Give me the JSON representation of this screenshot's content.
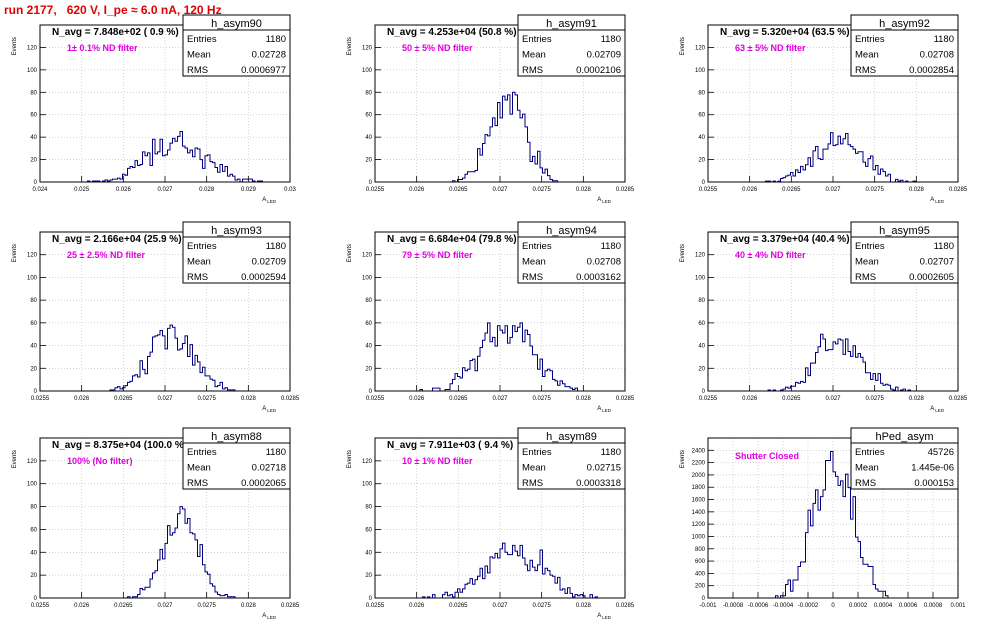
{
  "page_title": "run 2177,   620 V, I_pe ≈ 6.0 nA, 120 Hz",
  "colors": {
    "title": "#e00000",
    "annotation": "#e000e0",
    "histogram": "#000080",
    "grid": "#bbbbbb"
  },
  "chart_data": [
    {
      "type": "histogram",
      "name": "h_asym90",
      "header": "N_avg = 7.848e+02 ( 0.9 %)",
      "filter_label": "1± 0.1% ND filter",
      "stats": {
        "Entries": "1180",
        "Mean": "0.02728",
        "RMS": "0.0006977"
      },
      "ylabel": "Events",
      "xlabel": "A_LED",
      "xlim": [
        0.024,
        0.03
      ],
      "ylim": [
        0,
        140
      ],
      "grid": true,
      "xticks": [
        0.024,
        0.025,
        0.026,
        0.027,
        0.028,
        0.029,
        0.03
      ],
      "yticks": [
        0,
        20,
        40,
        60,
        80,
        100,
        120
      ],
      "mean": 0.02728,
      "rms": 0.0006977,
      "entries": 1180,
      "bins": 100,
      "peak": 45
    },
    {
      "type": "histogram",
      "name": "h_asym91",
      "header": "N_avg = 4.253e+04 (50.8 %)",
      "filter_label": "50 ± 5% ND filter",
      "stats": {
        "Entries": "1180",
        "Mean": "0.02709",
        "RMS": "0.0002106"
      },
      "ylabel": "Events",
      "xlabel": "A_LED",
      "xlim": [
        0.0255,
        0.0285
      ],
      "ylim": [
        0,
        140
      ],
      "grid": true,
      "xticks": [
        0.0255,
        0.026,
        0.0265,
        0.027,
        0.0275,
        0.028,
        0.0285
      ],
      "yticks": [
        0,
        20,
        40,
        60,
        80,
        100,
        120
      ],
      "mean": 0.02709,
      "rms": 0.0002106,
      "entries": 1180,
      "bins": 100,
      "peak": 80
    },
    {
      "type": "histogram",
      "name": "h_asym92",
      "header": "N_avg = 5.320e+04 (63.5 %)",
      "filter_label": "63 ± 5% ND filter",
      "stats": {
        "Entries": "1180",
        "Mean": "0.02708",
        "RMS": "0.0002854"
      },
      "ylabel": "Events",
      "xlabel": "A_LED",
      "xlim": [
        0.0255,
        0.0285
      ],
      "ylim": [
        0,
        140
      ],
      "grid": true,
      "xticks": [
        0.0255,
        0.026,
        0.0265,
        0.027,
        0.0275,
        0.028,
        0.0285
      ],
      "yticks": [
        0,
        20,
        40,
        60,
        80,
        100,
        120
      ],
      "mean": 0.02708,
      "rms": 0.0002854,
      "entries": 1180,
      "bins": 100,
      "peak": 44
    },
    {
      "type": "histogram",
      "name": "h_asym93",
      "header": "N_avg = 2.166e+04 (25.9 %)",
      "filter_label": "25 ± 2.5% ND filter",
      "stats": {
        "Entries": "1180",
        "Mean": "0.02709",
        "RMS": "0.0002594"
      },
      "ylabel": "Events",
      "xlabel": "A_LED",
      "xlim": [
        0.0255,
        0.0285
      ],
      "ylim": [
        0,
        140
      ],
      "grid": true,
      "xticks": [
        0.0255,
        0.026,
        0.0265,
        0.027,
        0.0275,
        0.028,
        0.0285
      ],
      "yticks": [
        0,
        20,
        40,
        60,
        80,
        100,
        120
      ],
      "mean": 0.02709,
      "rms": 0.0002594,
      "entries": 1180,
      "bins": 100,
      "peak": 58
    },
    {
      "type": "histogram",
      "name": "h_asym94",
      "header": "N_avg = 6.684e+04 (79.8 %)",
      "filter_label": "79 ± 5% ND filter",
      "stats": {
        "Entries": "1180",
        "Mean": "0.02708",
        "RMS": "0.0003162"
      },
      "ylabel": "Events",
      "xlabel": "A_LED",
      "xlim": [
        0.0255,
        0.0285
      ],
      "ylim": [
        0,
        140
      ],
      "grid": true,
      "xticks": [
        0.0255,
        0.026,
        0.0265,
        0.027,
        0.0275,
        0.028,
        0.0285
      ],
      "yticks": [
        0,
        20,
        40,
        60,
        80,
        100,
        120
      ],
      "mean": 0.02708,
      "rms": 0.0003162,
      "entries": 1180,
      "bins": 100,
      "peak": 60
    },
    {
      "type": "histogram",
      "name": "h_asym95",
      "header": "N_avg = 3.379e+04 (40.4 %)",
      "filter_label": "40 ± 4% ND filter",
      "stats": {
        "Entries": "1180",
        "Mean": "0.02707",
        "RMS": "0.0002605"
      },
      "ylabel": "Events",
      "xlabel": "A_LED",
      "xlim": [
        0.0255,
        0.0285
      ],
      "ylim": [
        0,
        140
      ],
      "grid": true,
      "xticks": [
        0.0255,
        0.026,
        0.0265,
        0.027,
        0.0275,
        0.028,
        0.0285
      ],
      "yticks": [
        0,
        20,
        40,
        60,
        80,
        100,
        120
      ],
      "mean": 0.02707,
      "rms": 0.0002605,
      "entries": 1180,
      "bins": 100,
      "peak": 50
    },
    {
      "type": "histogram",
      "name": "h_asym88",
      "header": "N_avg = 8.375e+04 (100.0 %)",
      "filter_label": "100% (No filter)",
      "stats": {
        "Entries": "1180",
        "Mean": "0.02718",
        "RMS": "0.0002065"
      },
      "ylabel": "Events",
      "xlabel": "A_LED",
      "xlim": [
        0.0255,
        0.0285
      ],
      "ylim": [
        0,
        140
      ],
      "grid": true,
      "xticks": [
        0.0255,
        0.026,
        0.0265,
        0.027,
        0.0275,
        0.028,
        0.0285
      ],
      "yticks": [
        0,
        20,
        40,
        60,
        80,
        100,
        120
      ],
      "mean": 0.02718,
      "rms": 0.0002065,
      "entries": 1180,
      "bins": 100,
      "peak": 80
    },
    {
      "type": "histogram",
      "name": "h_asym89",
      "header": "N_avg = 7.911e+03 ( 9.4 %)",
      "filter_label": "10 ± 1% ND filter",
      "stats": {
        "Entries": "1180",
        "Mean": "0.02715",
        "RMS": "0.0003318"
      },
      "ylabel": "Events",
      "xlabel": "A_LED",
      "xlim": [
        0.0255,
        0.0285
      ],
      "ylim": [
        0,
        140
      ],
      "grid": true,
      "xticks": [
        0.0255,
        0.026,
        0.0265,
        0.027,
        0.0275,
        0.028,
        0.0285
      ],
      "yticks": [
        0,
        20,
        40,
        60,
        80,
        100,
        120
      ],
      "mean": 0.02715,
      "rms": 0.0003318,
      "entries": 1180,
      "bins": 100,
      "peak": 48
    },
    {
      "type": "histogram",
      "name": "hPed_asym",
      "header": "",
      "filter_label": "Shutter Closed",
      "stats": {
        "Entries": "45726",
        "Mean": "1.445e-06",
        "RMS": "0.000153"
      },
      "ylabel": "Events",
      "xlabel": "",
      "xlim": [
        -0.001,
        0.001
      ],
      "ylim": [
        0,
        2600
      ],
      "grid": true,
      "xticks": [
        -0.001,
        -0.0008,
        -0.0006,
        -0.0004,
        -0.0002,
        0,
        0.0002,
        0.0004,
        0.0006,
        0.0008,
        0.001
      ],
      "yticks": [
        0,
        200,
        400,
        600,
        800,
        1000,
        1200,
        1400,
        1600,
        1800,
        2000,
        2200,
        2400
      ],
      "mean": 1.45e-06,
      "rms": 0.000153,
      "entries": 45726,
      "bins": 100,
      "peak": 2380
    }
  ]
}
